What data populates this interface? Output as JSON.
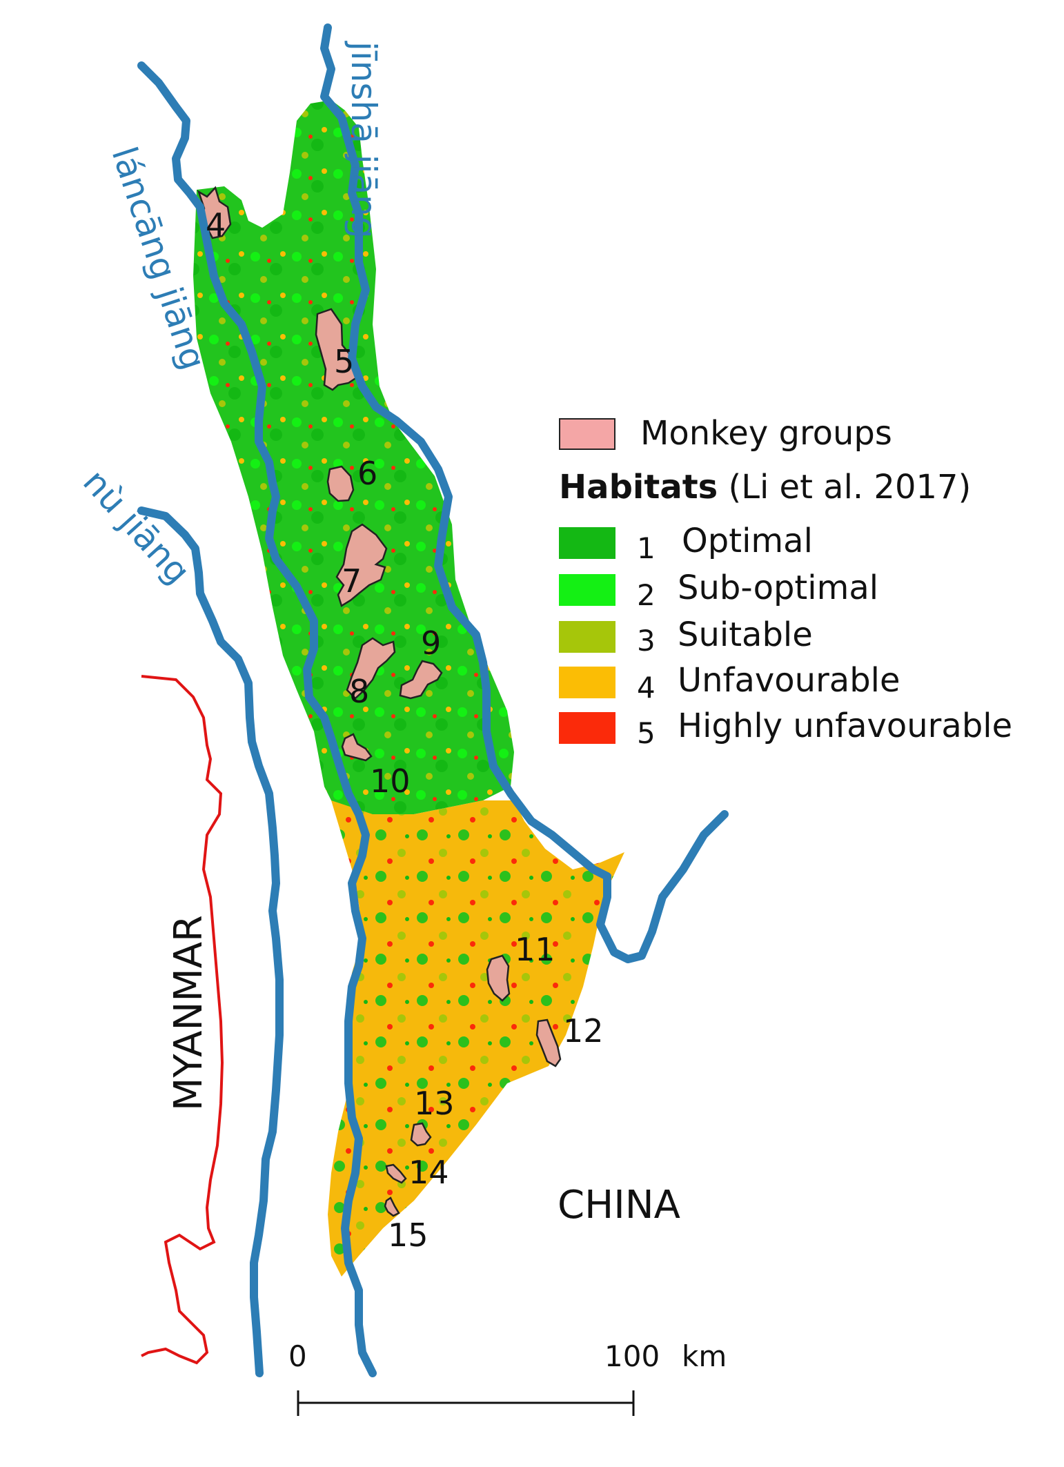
{
  "rivers": {
    "jinsha": "jīnshā jiāng",
    "lancang": "láncāng jiāng",
    "nu": "nù jiāng"
  },
  "countries": {
    "myanmar": "MYANMAR",
    "china": "CHINA"
  },
  "groups": [
    "4",
    "5",
    "6",
    "7",
    "8",
    "9",
    "10",
    "11",
    "12",
    "13",
    "14",
    "15"
  ],
  "legend": {
    "monkey_label": "Monkey groups",
    "title_bold": "Habitats",
    "title_rest": " (Li et al. 2017)",
    "classes": [
      {
        "num": "1",
        "label": "Optimal",
        "color": "#14b814"
      },
      {
        "num": "2",
        "label": "Sub-optimal",
        "color": "#14f014"
      },
      {
        "num": "3",
        "label": "Suitable",
        "color": "#a6c60a"
      },
      {
        "num": "4",
        "label": "Unfavourable",
        "color": "#fbbd05"
      },
      {
        "num": "5",
        "label": "Highly unfavourable",
        "color": "#fb2a0a"
      }
    ]
  },
  "scale": {
    "start": "0",
    "end": "100",
    "unit": "km"
  },
  "colors": {
    "river": "#2d7db5",
    "border": "#e01414",
    "monkey_fill": "#e6a69a"
  }
}
